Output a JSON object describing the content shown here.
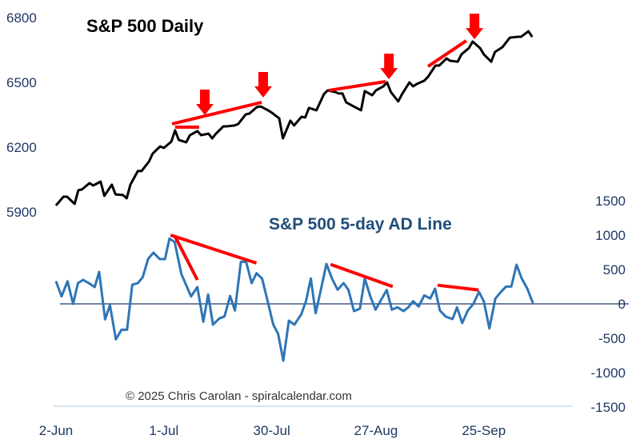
{
  "chart_data": [
    {
      "type": "line",
      "title": "S&P 500 Daily",
      "xlabel": "",
      "ylabel": "",
      "x_unit": "calendar days since 2-Jun",
      "xlim": [
        -1,
        139
      ],
      "ylim": [
        5830,
        6830
      ],
      "yticks": [
        5900,
        6200,
        6500,
        6800
      ],
      "axis_side": "left",
      "color": "#000000",
      "points": [
        [
          0,
          5931
        ],
        [
          2,
          5971
        ],
        [
          3,
          5971
        ],
        [
          5,
          5938
        ],
        [
          6,
          6001
        ],
        [
          7,
          6005
        ],
        [
          9,
          6034
        ],
        [
          10,
          6023
        ],
        [
          12,
          6041
        ],
        [
          13,
          5975
        ],
        [
          15,
          6027
        ],
        [
          16,
          5982
        ],
        [
          18,
          5979
        ],
        [
          19,
          5964
        ],
        [
          20,
          6027
        ],
        [
          22,
          6090
        ],
        [
          23,
          6090
        ],
        [
          25,
          6134
        ],
        [
          26,
          6171
        ],
        [
          28,
          6204
        ],
        [
          29,
          6197
        ],
        [
          31,
          6226
        ],
        [
          32,
          6278
        ],
        [
          33,
          6234
        ],
        [
          35,
          6223
        ],
        [
          36,
          6256
        ],
        [
          38,
          6275
        ],
        [
          39,
          6256
        ],
        [
          41,
          6263
        ],
        [
          42,
          6241
        ],
        [
          43,
          6263
        ],
        [
          45,
          6297
        ],
        [
          46,
          6297
        ],
        [
          48,
          6301
        ],
        [
          49,
          6308
        ],
        [
          51,
          6352
        ],
        [
          52,
          6356
        ],
        [
          54,
          6386
        ],
        [
          55,
          6389
        ],
        [
          57,
          6371
        ],
        [
          58,
          6360
        ],
        [
          60,
          6334
        ],
        [
          61,
          6241
        ],
        [
          63,
          6323
        ],
        [
          64,
          6301
        ],
        [
          66,
          6341
        ],
        [
          67,
          6338
        ],
        [
          68,
          6382
        ],
        [
          70,
          6371
        ],
        [
          72,
          6445
        ],
        [
          73,
          6463
        ],
        [
          75,
          6456
        ],
        [
          76,
          6449
        ],
        [
          77,
          6449
        ],
        [
          78,
          6408
        ],
        [
          80,
          6389
        ],
        [
          82,
          6371
        ],
        [
          83,
          6460
        ],
        [
          85,
          6441
        ],
        [
          86,
          6463
        ],
        [
          88,
          6482
        ],
        [
          89,
          6500
        ],
        [
          90,
          6456
        ],
        [
          92,
          6412
        ],
        [
          93,
          6445
        ],
        [
          95,
          6500
        ],
        [
          96,
          6482
        ],
        [
          97,
          6493
        ],
        [
          99,
          6508
        ],
        [
          100,
          6526
        ],
        [
          102,
          6578
        ],
        [
          103,
          6578
        ],
        [
          105,
          6611
        ],
        [
          106,
          6600
        ],
        [
          108,
          6596
        ],
        [
          109,
          6630
        ],
        [
          111,
          6659
        ],
        [
          112,
          6689
        ],
        [
          114,
          6659
        ],
        [
          115,
          6630
        ],
        [
          117,
          6596
        ],
        [
          118,
          6641
        ],
        [
          120,
          6663
        ],
        [
          121,
          6685
        ],
        [
          122,
          6707
        ],
        [
          124,
          6711
        ],
        [
          125,
          6711
        ],
        [
          127,
          6737
        ],
        [
          128,
          6711
        ]
      ],
      "trendlines": [
        [
          [
            31.2,
            6308
          ],
          [
            55.3,
            6408
          ]
        ],
        [
          [
            32,
            6293
          ],
          [
            38.5,
            6293
          ]
        ],
        [
          [
            73.3,
            6463
          ],
          [
            88.6,
            6504
          ]
        ],
        [
          [
            100,
            6574
          ],
          [
            110.3,
            6693
          ]
        ]
      ],
      "arrows": [
        [
          40,
          6334
        ],
        [
          55.7,
          6415
        ],
        [
          89.5,
          6500
        ],
        [
          112.5,
          6685
        ]
      ],
      "annotation_color": "#FF0000"
    },
    {
      "type": "line",
      "title": "S&P 500 5-day AD Line",
      "xlabel": "",
      "ylabel": "",
      "xlim": [
        -1,
        139
      ],
      "ylim": [
        -1500,
        1500
      ],
      "yticks": [
        1500,
        1000,
        500,
        0,
        -500,
        -1000,
        -1500
      ],
      "axis_side": "right",
      "color": "#2E75B6",
      "zero_line_color": "#1F3864",
      "points": [
        [
          0,
          329
        ],
        [
          1.5,
          108
        ],
        [
          3.1,
          329
        ],
        [
          4.6,
          0
        ],
        [
          5.9,
          302
        ],
        [
          7.3,
          349
        ],
        [
          8.8,
          302
        ],
        [
          10.4,
          244
        ],
        [
          11.6,
          465
        ],
        [
          13.2,
          -225
        ],
        [
          14.5,
          -19
        ],
        [
          16.1,
          -516
        ],
        [
          17.6,
          -376
        ],
        [
          19.1,
          -376
        ],
        [
          20.5,
          279
        ],
        [
          22,
          302
        ],
        [
          23.3,
          388
        ],
        [
          24.8,
          659
        ],
        [
          26.2,
          744
        ],
        [
          27.9,
          651
        ],
        [
          29.3,
          651
        ],
        [
          30.5,
          950
        ],
        [
          31.9,
          899
        ],
        [
          33.7,
          434
        ],
        [
          36.3,
          108
        ],
        [
          38,
          244
        ],
        [
          39.6,
          -260
        ],
        [
          40.9,
          136
        ],
        [
          42.2,
          -302
        ],
        [
          43.9,
          -213
        ],
        [
          45.3,
          -182
        ],
        [
          46.8,
          116
        ],
        [
          48.1,
          -97
        ],
        [
          49.7,
          612
        ],
        [
          51.1,
          612
        ],
        [
          52.6,
          302
        ],
        [
          53.9,
          446
        ],
        [
          55.4,
          368
        ],
        [
          56.9,
          39
        ],
        [
          58.4,
          -302
        ],
        [
          59.7,
          -434
        ],
        [
          61.1,
          -826
        ],
        [
          62.6,
          -244
        ],
        [
          64.1,
          -302
        ],
        [
          65.9,
          -155
        ],
        [
          67.2,
          39
        ],
        [
          68.5,
          368
        ],
        [
          69.8,
          -136
        ],
        [
          71.2,
          205
        ],
        [
          72.7,
          581
        ],
        [
          74.2,
          368
        ],
        [
          75.7,
          205
        ],
        [
          77.3,
          302
        ],
        [
          78.6,
          205
        ],
        [
          80.1,
          -105
        ],
        [
          81.7,
          -70
        ],
        [
          83,
          368
        ],
        [
          84.5,
          108
        ],
        [
          85.9,
          -85
        ],
        [
          87.4,
          58
        ],
        [
          88.9,
          202
        ],
        [
          90.3,
          -85
        ],
        [
          91.8,
          -50
        ],
        [
          93.4,
          -105
        ],
        [
          94.7,
          -50
        ],
        [
          96,
          39
        ],
        [
          97.5,
          -39
        ],
        [
          99,
          124
        ],
        [
          100.6,
          78
        ],
        [
          101.9,
          221
        ],
        [
          103.2,
          -97
        ],
        [
          104.8,
          -186
        ],
        [
          106.6,
          -221
        ],
        [
          107.8,
          -50
        ],
        [
          109.2,
          -279
        ],
        [
          110.7,
          -97
        ],
        [
          112.2,
          0
        ],
        [
          113.7,
          174
        ],
        [
          115,
          39
        ],
        [
          116.5,
          -357
        ],
        [
          118.1,
          78
        ],
        [
          119.6,
          174
        ],
        [
          121,
          252
        ],
        [
          122.4,
          252
        ],
        [
          123.8,
          570
        ],
        [
          125.2,
          368
        ],
        [
          126.7,
          221
        ],
        [
          128.2,
          12
        ]
      ],
      "trendlines": [
        [
          [
            30.8,
            1000
          ],
          [
            53.9,
            593
          ]
        ],
        [
          [
            32.1,
            969
          ],
          [
            38,
            349
          ]
        ],
        [
          [
            73.8,
            574
          ],
          [
            90.5,
            252
          ]
        ],
        [
          [
            102.6,
            271
          ],
          [
            113.6,
            202
          ]
        ]
      ],
      "annotation_color": "#FF0000"
    }
  ],
  "x_ticks": [
    {
      "day": 0,
      "label": "2-Jun"
    },
    {
      "day": 29,
      "label": "1-Jul"
    },
    {
      "day": 58,
      "label": "30-Jul"
    },
    {
      "day": 86,
      "label": "27-Aug"
    },
    {
      "day": 115,
      "label": "25-Sep"
    }
  ],
  "credit": "© 2025 Chris Carolan - spiralcalendar.com"
}
